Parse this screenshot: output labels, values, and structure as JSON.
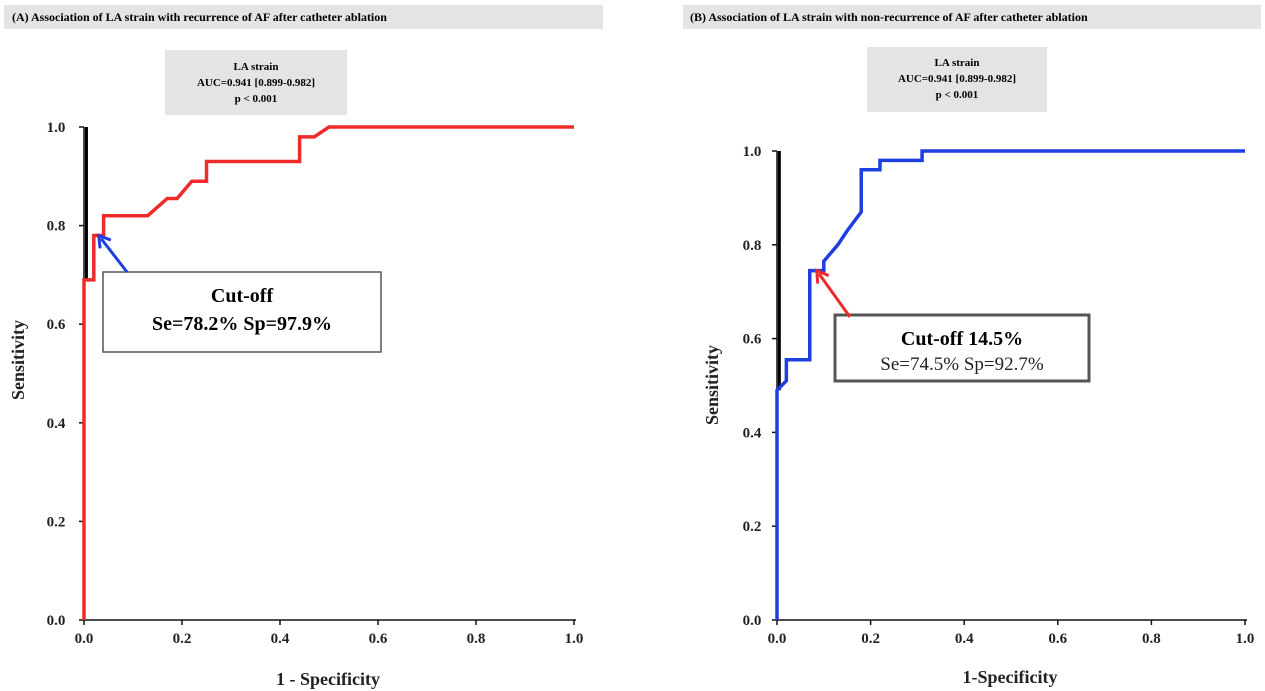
{
  "chart_data": [
    {
      "type": "line",
      "title": "(A) Association of LA strain with recurrence of AF after catheter ablation",
      "xlabel": "1 - Specificity",
      "ylabel": "Sensitivity",
      "xlim": [
        0,
        1
      ],
      "ylim": [
        0,
        1
      ],
      "x_ticks": [
        "0.0",
        "0.2",
        "0.4",
        "0.6",
        "0.8",
        "1.0"
      ],
      "y_ticks": [
        "0.0",
        "0.2",
        "0.4",
        "0.6",
        "0.8",
        "1.0"
      ],
      "stats": [
        "LA strain",
        "AUC=0.941 [0.899-0.982]",
        "p < 0.001"
      ],
      "series": [
        {
          "color": "#ee2a2a",
          "points": [
            [
              0,
              0
            ],
            [
              0,
              0.69
            ],
            [
              0.02,
              0.69
            ],
            [
              0.02,
              0.78
            ],
            [
              0.04,
              0.78
            ],
            [
              0.04,
              0.82
            ],
            [
              0.13,
              0.82
            ],
            [
              0.17,
              0.855
            ],
            [
              0.19,
              0.855
            ],
            [
              0.22,
              0.89
            ],
            [
              0.25,
              0.89
            ],
            [
              0.25,
              0.93
            ],
            [
              0.44,
              0.93
            ],
            [
              0.44,
              0.98
            ],
            [
              0.47,
              0.98
            ],
            [
              0.5,
              1.0
            ],
            [
              1.0,
              1.0
            ]
          ]
        }
      ],
      "reference_line": {
        "color": "#000000",
        "points": [
          [
            0.005,
            0.69
          ],
          [
            0.005,
            1.0
          ]
        ]
      },
      "annotation": {
        "title": "Cut-off",
        "subtitle": "Se=78.2% Sp=97.9%",
        "arrow_color": "#1e3ee0",
        "target": [
          0.03,
          0.78
        ]
      }
    },
    {
      "type": "line",
      "title": "(B) Association of LA strain with non-recurrence of AF after catheter ablation",
      "xlabel": "1-Specificity",
      "ylabel": "Sensitivity",
      "xlim": [
        0,
        1
      ],
      "ylim": [
        0,
        1
      ],
      "x_ticks": [
        "0.0",
        "0.2",
        "0.4",
        "0.6",
        "0.8",
        "1.0"
      ],
      "y_ticks": [
        "0.0",
        "0.2",
        "0.4",
        "0.6",
        "0.8",
        "1.0"
      ],
      "stats": [
        "LA strain",
        "AUC=0.941 [0.899-0.982]",
        "p < 0.001"
      ],
      "series": [
        {
          "color": "#1e3ee0",
          "points": [
            [
              0,
              0
            ],
            [
              0,
              0.49
            ],
            [
              0.01,
              0.5
            ],
            [
              0.02,
              0.51
            ],
            [
              0.02,
              0.555
            ],
            [
              0.07,
              0.555
            ],
            [
              0.07,
              0.745
            ],
            [
              0.1,
              0.745
            ],
            [
              0.1,
              0.765
            ],
            [
              0.13,
              0.8
            ],
            [
              0.15,
              0.83
            ],
            [
              0.18,
              0.87
            ],
            [
              0.18,
              0.96
            ],
            [
              0.22,
              0.96
            ],
            [
              0.22,
              0.98
            ],
            [
              0.31,
              0.98
            ],
            [
              0.31,
              1.0
            ],
            [
              1.0,
              1.0
            ]
          ]
        }
      ],
      "reference_line": {
        "color": "#000000",
        "points": [
          [
            0.005,
            0.49
          ],
          [
            0.005,
            1.0
          ]
        ]
      },
      "annotation": {
        "title": "Cut-off 14.5%",
        "subtitle": "Se=74.5% Sp=92.7%",
        "arrow_color": "#ee2a2a",
        "target": [
          0.085,
          0.745
        ]
      }
    }
  ]
}
